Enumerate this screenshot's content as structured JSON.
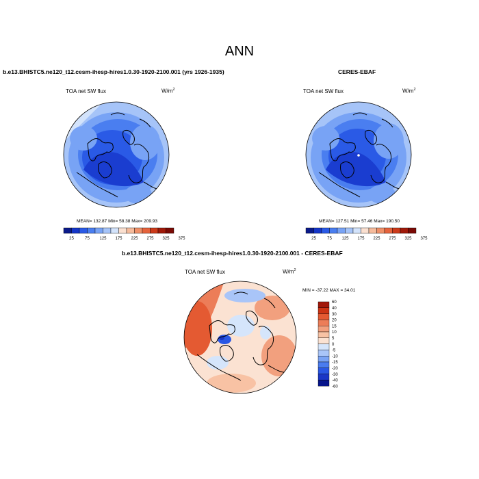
{
  "page": {
    "title": "ANN"
  },
  "panels": {
    "model": {
      "title": "b.e13.BHISTC5.ne120_t12.cesm-ihesp-hires1.0.30-1920-2100.001 (yrs 1926-1935)",
      "field": "TOA net SW flux",
      "units": "W/m",
      "units_sup": "2",
      "stats": "MEAN= 132.87  Min=  58.38  Max= 209.93"
    },
    "obs": {
      "title": "CERES-EBAF",
      "field": "TOA net SW flux",
      "units": "W/m",
      "units_sup": "2",
      "stats": "MEAN= 127.51  Min=  57.46  Max= 190.50"
    },
    "diff": {
      "title": "b.e13.BHISTC5.ne120_t12.cesm-ihesp-hires1.0.30-1920-2100.001 - CERES-EBAF",
      "field": "TOA net SW flux",
      "units": "W/m",
      "units_sup": "2",
      "stats": "MIN = -37.22  MAX =  34.01"
    }
  },
  "colorbars": {
    "abs_colors": [
      "#0a1a8a",
      "#1536c8",
      "#2a5ae6",
      "#4a7ef0",
      "#78a3f5",
      "#a6c4f8",
      "#d3e3fb",
      "#fbe0d0",
      "#f6bb9c",
      "#ef9068",
      "#e5633c",
      "#cc3a1a",
      "#a01a0a",
      "#7a0a05"
    ],
    "abs_labels": [
      "25",
      "75",
      "125",
      "175",
      "225",
      "275",
      "325",
      "375"
    ],
    "diff_colors": [
      "#06148a",
      "#1a36c6",
      "#2a57e4",
      "#4a7cef",
      "#7aa3f4",
      "#a9c5f8",
      "#d5e5fb",
      "#fbe2d2",
      "#f8c2a4",
      "#f2a07e",
      "#ec7d58",
      "#e45a32",
      "#cc3414",
      "#a2180a"
    ],
    "diff_labels": [
      "60",
      "40",
      "30",
      "20",
      "15",
      "10",
      "5",
      "0",
      "-5",
      "-10",
      "-15",
      "-20",
      "-30",
      "-40",
      "-60"
    ]
  }
}
